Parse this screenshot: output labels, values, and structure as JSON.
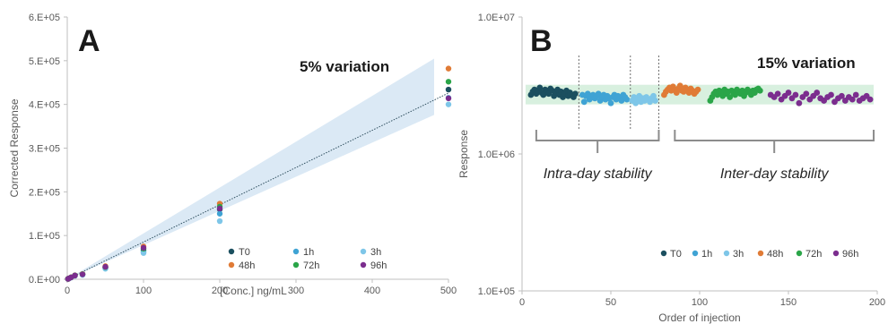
{
  "colors": {
    "T0": "#1b4f5f",
    "1h": "#3fa3d4",
    "3h": "#7ec6e8",
    "48h": "#e07b36",
    "72h": "#2aa548",
    "96h": "#7b2d8e",
    "band_a": "#dbe9f5",
    "band_b": "#d8f0df",
    "axis": "#bfbfbf",
    "bracket": "#8c8c8c"
  },
  "chart_data": [
    {
      "type": "scatter",
      "panel_label": "A",
      "annotation": "5% variation",
      "xlabel": "[Conc.] ng/mL",
      "ylabel": "Corrected Response",
      "xlim": [
        0,
        500
      ],
      "ylim": [
        0,
        600000
      ],
      "x_ticks": [
        "0",
        "100",
        "200",
        "300",
        "400",
        "500"
      ],
      "y_ticks": [
        "0.E+00",
        "1.E+05",
        "2.E+05",
        "3.E+05",
        "4.E+05",
        "5.E+05",
        "6.E+05"
      ],
      "grid": false,
      "legend": "bottom-right",
      "trendline": {
        "x": [
          0,
          500
        ],
        "y": [
          0,
          426000
        ]
      },
      "band": {
        "x": [
          0,
          500
        ],
        "lower": [
          0,
          370000
        ],
        "upper": [
          0,
          513000
        ]
      },
      "series": [
        {
          "name": "T0",
          "x": [
            1,
            2,
            5,
            10,
            20,
            50,
            100,
            200,
            500
          ],
          "y": [
            850,
            1700,
            4200,
            8500,
            11000,
            27000,
            66000,
            160000,
            434000
          ]
        },
        {
          "name": "1h",
          "x": [
            1,
            2,
            5,
            10,
            20,
            50,
            100,
            200,
            500
          ],
          "y": [
            800,
            1650,
            4000,
            8200,
            10500,
            25000,
            62000,
            150000,
            415000
          ]
        },
        {
          "name": "3h",
          "x": [
            1,
            2,
            5,
            10,
            20,
            50,
            100,
            200,
            500
          ],
          "y": [
            780,
            1600,
            3900,
            8000,
            10000,
            24000,
            60000,
            133000,
            400000
          ]
        },
        {
          "name": "48h",
          "x": [
            1,
            2,
            5,
            10,
            20,
            50,
            100,
            200,
            500
          ],
          "y": [
            900,
            1800,
            4500,
            9000,
            12000,
            30000,
            75000,
            173000,
            482000
          ]
        },
        {
          "name": "72h",
          "x": [
            1,
            2,
            5,
            10,
            20,
            50,
            100,
            200,
            500
          ],
          "y": [
            880,
            1750,
            4400,
            8800,
            11500,
            28000,
            70000,
            166000,
            452000
          ]
        },
        {
          "name": "96h",
          "x": [
            1,
            2,
            5,
            10,
            20,
            50,
            100,
            200,
            500
          ],
          "y": [
            860,
            1720,
            4300,
            8600,
            11200,
            28500,
            72000,
            162000,
            414000
          ]
        }
      ]
    },
    {
      "type": "scatter",
      "panel_label": "B",
      "annotation": "15% variation",
      "xlabel": "Order of injection",
      "ylabel": "Response",
      "xlim": [
        0,
        200
      ],
      "ylim": [
        100000,
        10000000
      ],
      "yscale": "log",
      "x_ticks": [
        "0",
        "50",
        "100",
        "150",
        "200"
      ],
      "y_ticks": [
        "1.0E+05",
        "1.0E+06",
        "1.0E+07"
      ],
      "grid": false,
      "legend": "bottom-right",
      "band": {
        "lower": 2300000,
        "upper": 3200000
      },
      "dividers": [
        32,
        61,
        77
      ],
      "groups": [
        {
          "label": "Intra-day stability",
          "x_range": [
            5,
            77
          ]
        },
        {
          "label": "Inter-day stability",
          "x_range": [
            83,
            198
          ]
        }
      ],
      "series": [
        {
          "name": "T0",
          "x": [
            5,
            6,
            7,
            8,
            9,
            10,
            11,
            12,
            13,
            14,
            15,
            16,
            17,
            18,
            19,
            20,
            21,
            22,
            23,
            24,
            25,
            26,
            27,
            28,
            29,
            30
          ],
          "y": [
            2700000,
            2850000,
            2950000,
            2750000,
            2900000,
            3050000,
            2800000,
            2700000,
            2950000,
            2850000,
            2750000,
            3000000,
            2900000,
            2650000,
            2800000,
            2950000,
            2700000,
            2850000,
            2600000,
            2750000,
            2900000,
            2650000,
            2800000,
            2700000,
            2600000,
            2750000
          ]
        },
        {
          "name": "1h",
          "x": [
            34,
            35,
            36,
            37,
            38,
            39,
            40,
            41,
            42,
            43,
            44,
            45,
            46,
            47,
            48,
            49,
            50,
            51,
            52,
            53,
            54,
            55,
            56,
            57,
            58,
            59
          ],
          "y": [
            2700000,
            2400000,
            2650000,
            2750000,
            2500000,
            2600000,
            2700000,
            2550000,
            2650000,
            2750000,
            2450000,
            2600000,
            2700000,
            2500000,
            2650000,
            2550000,
            2350000,
            2600000,
            2700000,
            2500000,
            2650000,
            2550000,
            2450000,
            2700000,
            2600000,
            2500000
          ]
        },
        {
          "name": "3h",
          "x": [
            62,
            63,
            64,
            65,
            66,
            67,
            68,
            69,
            70,
            71,
            72,
            73,
            74,
            75
          ],
          "y": [
            2450000,
            2600000,
            2350000,
            2500000,
            2650000,
            2400000,
            2550000,
            2450000,
            2600000,
            2500000,
            2400000,
            2550000,
            2650000,
            2450000
          ]
        },
        {
          "name": "48h",
          "x": [
            80,
            81,
            82,
            83,
            84,
            85,
            86,
            87,
            88,
            89,
            90,
            91,
            92,
            93,
            94,
            95,
            96,
            97,
            98,
            99
          ],
          "y": [
            2700000,
            2850000,
            2950000,
            3050000,
            2900000,
            3100000,
            2950000,
            2800000,
            3000000,
            3150000,
            2900000,
            2850000,
            3050000,
            2950000,
            2800000,
            3000000,
            2900000,
            2750000,
            2850000,
            2950000
          ]
        },
        {
          "name": "72h",
          "x": [
            106,
            107,
            108,
            109,
            110,
            111,
            112,
            113,
            114,
            115,
            116,
            117,
            118,
            119,
            120,
            121,
            122,
            123,
            124,
            125,
            126,
            127,
            128,
            129,
            130,
            131,
            132,
            133,
            134
          ],
          "y": [
            2450000,
            2600000,
            2750000,
            2850000,
            2700000,
            2900000,
            2800000,
            2650000,
            2950000,
            2750000,
            2850000,
            2600000,
            2900000,
            2800000,
            2700000,
            2950000,
            2850000,
            2750000,
            2900000,
            2650000,
            2800000,
            2950000,
            2850000,
            2700000,
            2900000,
            2800000,
            2950000,
            3000000,
            2900000
          ]
        },
        {
          "name": "96h",
          "x": [
            140,
            142,
            144,
            146,
            148,
            150,
            152,
            154,
            156,
            158,
            160,
            162,
            164,
            166,
            168,
            170,
            172,
            174,
            176,
            178,
            180,
            182,
            184,
            186,
            188,
            190,
            192,
            194,
            196
          ],
          "y": [
            2700000,
            2600000,
            2750000,
            2500000,
            2650000,
            2800000,
            2550000,
            2700000,
            2350000,
            2600000,
            2750000,
            2500000,
            2650000,
            2800000,
            2550000,
            2450000,
            2600000,
            2700000,
            2400000,
            2550000,
            2650000,
            2450000,
            2600000,
            2500000,
            2700000,
            2450000,
            2550000,
            2650000,
            2500000
          ]
        }
      ]
    }
  ]
}
